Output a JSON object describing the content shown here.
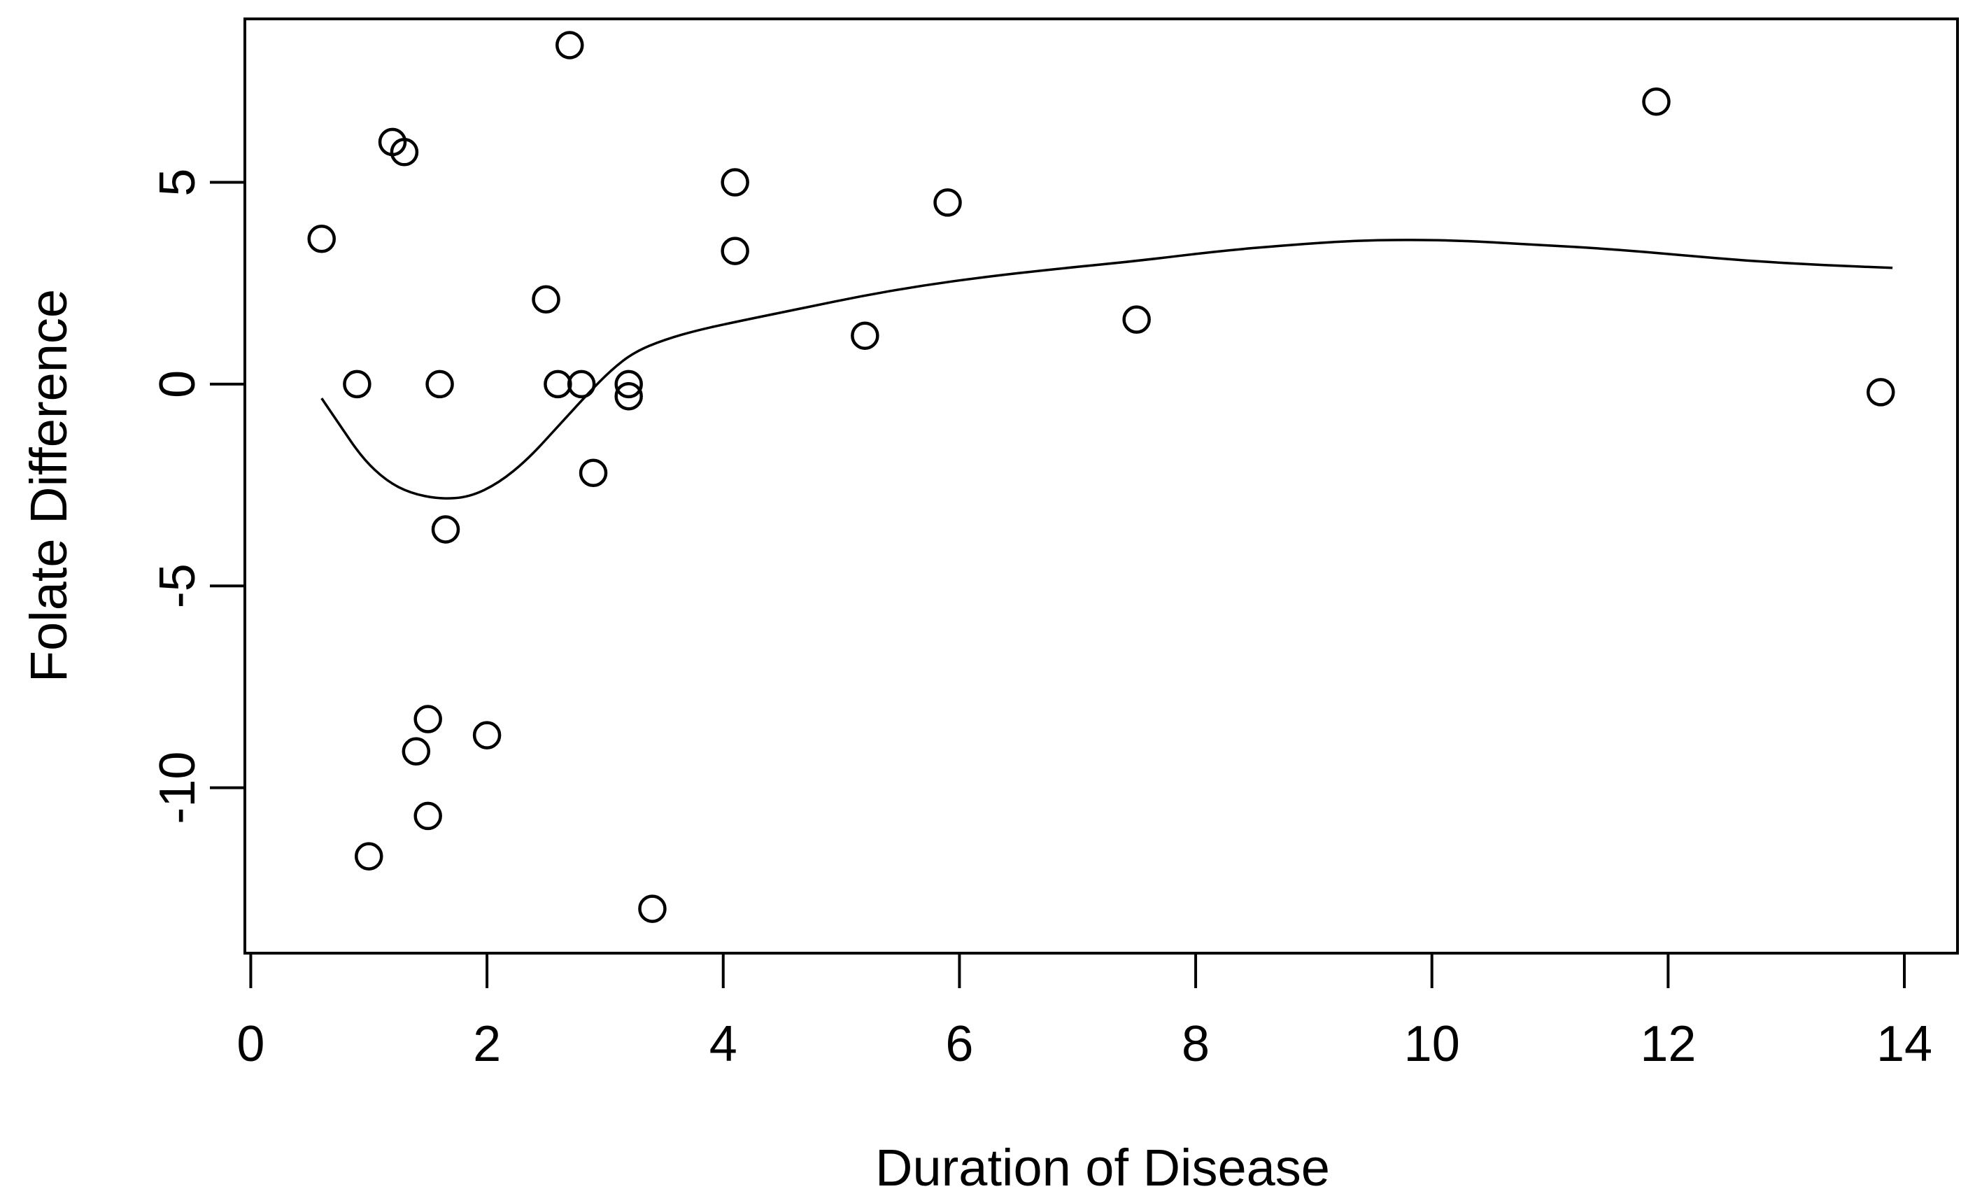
{
  "chart_data": {
    "type": "scatter",
    "title": "",
    "xlabel": "Duration of Disease",
    "ylabel": "Folate Difference",
    "xlim": [
      -0.05,
      14.45
    ],
    "ylim": [
      -14.1,
      9.05
    ],
    "x_ticks": [
      0,
      2,
      4,
      6,
      8,
      10,
      12,
      14
    ],
    "y_ticks": [
      5,
      0,
      -5,
      -10
    ],
    "grid": false,
    "legend_position": "none",
    "marker": "open-circle",
    "colors": {
      "points": "#000000",
      "curve": "#000000",
      "axis": "#000000",
      "background": "#ffffff"
    },
    "points": [
      [
        0.6,
        3.6
      ],
      [
        0.9,
        0.0
      ],
      [
        1.0,
        -11.7
      ],
      [
        1.2,
        6.0
      ],
      [
        1.3,
        5.75
      ],
      [
        1.4,
        -9.1
      ],
      [
        1.5,
        -8.3
      ],
      [
        1.5,
        -10.7
      ],
      [
        1.6,
        0.0
      ],
      [
        1.65,
        -3.6
      ],
      [
        2.0,
        -8.7
      ],
      [
        2.5,
        2.1
      ],
      [
        2.6,
        0.0
      ],
      [
        2.7,
        8.4
      ],
      [
        2.8,
        0.0
      ],
      [
        2.9,
        -2.2
      ],
      [
        3.2,
        0.0
      ],
      [
        3.2,
        -0.3
      ],
      [
        3.4,
        -13.0
      ],
      [
        4.1,
        5.0
      ],
      [
        4.1,
        3.3
      ],
      [
        5.2,
        1.2
      ],
      [
        5.9,
        4.5
      ],
      [
        7.5,
        1.6
      ],
      [
        11.9,
        7.0
      ],
      [
        13.8,
        -0.2
      ]
    ],
    "smooth_curve": [
      [
        0.6,
        -0.35
      ],
      [
        0.75,
        -1.0
      ],
      [
        0.95,
        -1.85
      ],
      [
        1.15,
        -2.4
      ],
      [
        1.35,
        -2.7
      ],
      [
        1.6,
        -2.85
      ],
      [
        1.85,
        -2.8
      ],
      [
        2.1,
        -2.45
      ],
      [
        2.35,
        -1.85
      ],
      [
        2.6,
        -1.05
      ],
      [
        2.85,
        -0.25
      ],
      [
        3.05,
        0.35
      ],
      [
        3.25,
        0.8
      ],
      [
        3.5,
        1.1
      ],
      [
        3.8,
        1.35
      ],
      [
        4.2,
        1.6
      ],
      [
        4.7,
        1.9
      ],
      [
        5.2,
        2.2
      ],
      [
        5.7,
        2.45
      ],
      [
        6.2,
        2.65
      ],
      [
        6.8,
        2.85
      ],
      [
        7.5,
        3.05
      ],
      [
        8.2,
        3.3
      ],
      [
        8.8,
        3.45
      ],
      [
        9.3,
        3.55
      ],
      [
        9.8,
        3.58
      ],
      [
        10.3,
        3.55
      ],
      [
        10.9,
        3.45
      ],
      [
        11.5,
        3.35
      ],
      [
        12.1,
        3.2
      ],
      [
        12.7,
        3.05
      ],
      [
        13.3,
        2.95
      ],
      [
        13.9,
        2.88
      ]
    ]
  }
}
